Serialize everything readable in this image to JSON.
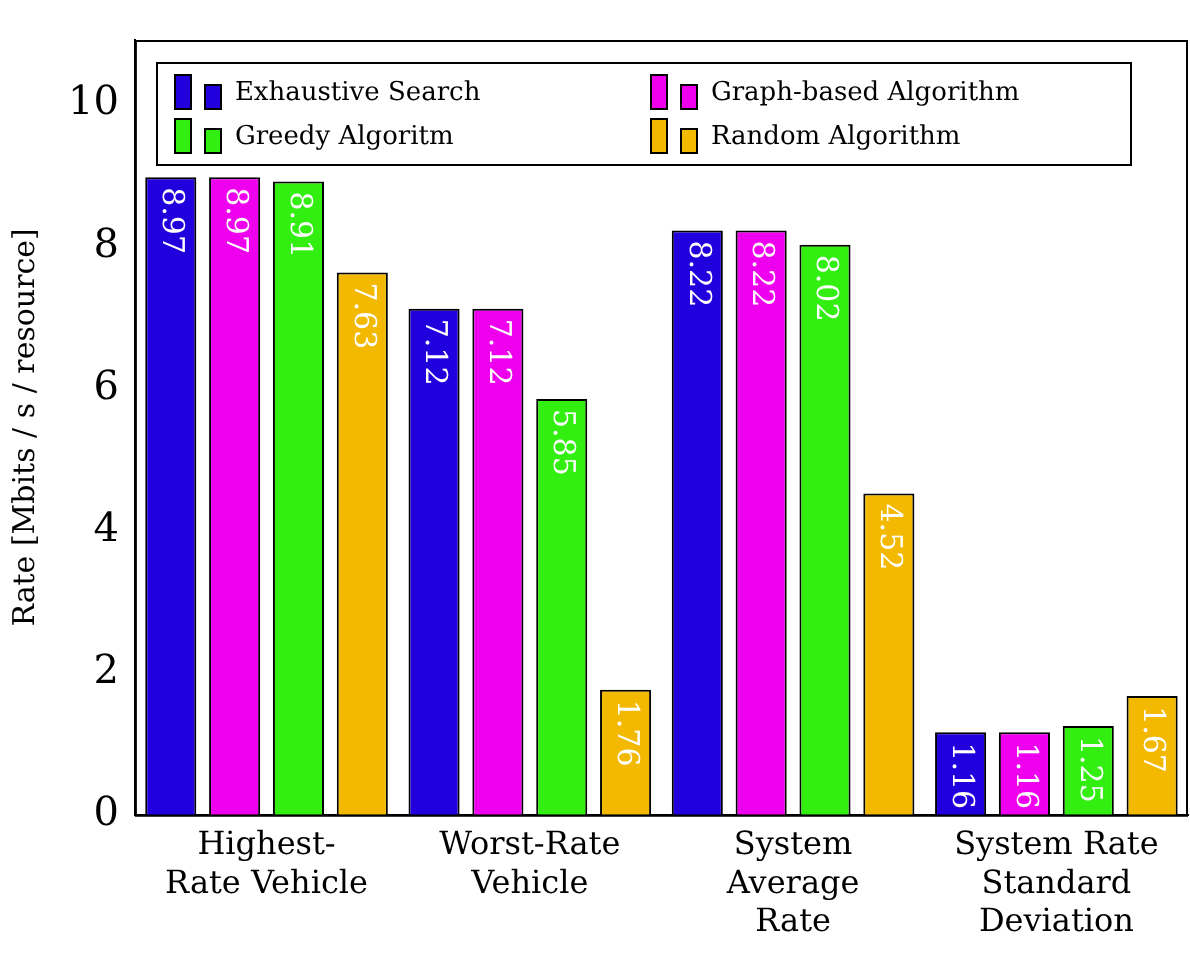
{
  "chart_data": {
    "type": "bar",
    "ylabel": "Rate [Mbits / s / resource]",
    "categories": [
      "Highest-\nRate Vehicle",
      "Worst-Rate\nVehicle",
      "System\nAverage\nRate",
      "System Rate\nStandard\nDeviation"
    ],
    "series": [
      {
        "name": "Exhaustive Search",
        "color": "#2200dd",
        "values": [
          8.97,
          7.12,
          8.22,
          1.16
        ]
      },
      {
        "name": "Graph-based Algorithm",
        "color": "#ee00ee",
        "values": [
          8.97,
          7.12,
          8.22,
          1.16
        ]
      },
      {
        "name": "Greedy Algoritm",
        "color": "#33ee11",
        "values": [
          8.91,
          5.85,
          8.02,
          1.25
        ]
      },
      {
        "name": "Random Algorithm",
        "color": "#f2b900",
        "values": [
          7.63,
          1.76,
          4.52,
          1.67
        ]
      }
    ],
    "ylim": [
      0,
      10.9
    ],
    "yticks": [
      0,
      2,
      4,
      6,
      8,
      10
    ],
    "legend": "top",
    "data_labels": true
  }
}
